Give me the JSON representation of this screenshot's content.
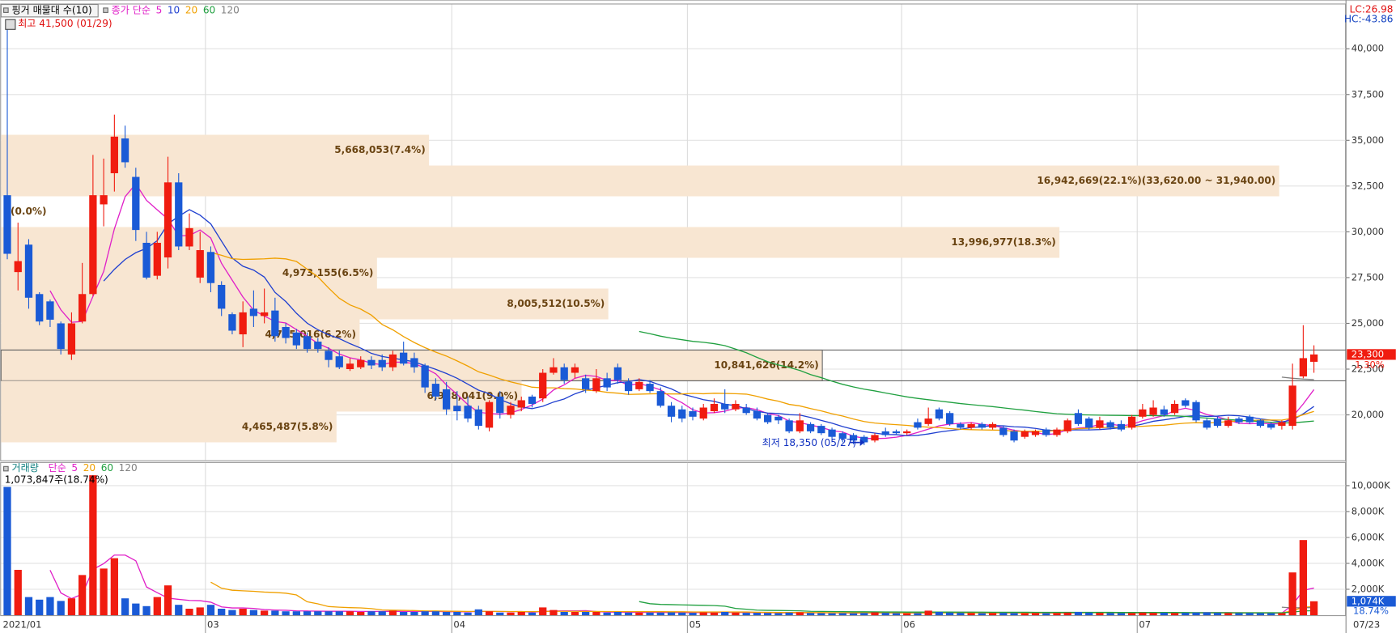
{
  "chart_data": {
    "type": "candlestick",
    "title": "핑거 매물대 수(10)",
    "lc_label": "LC:26.98",
    "hc_label": "HC:-43.86",
    "high_label": "최고 41,500 (01/29)",
    "low_label": "최저 18,350 (05/27)",
    "up_color": "#f01c10",
    "down_color": "#1a5ad6",
    "ylim": [
      17520,
      42420
    ],
    "yticks": [
      {
        "value": 20000,
        "label": "20,000"
      },
      {
        "value": 22500,
        "label": "22,500"
      },
      {
        "value": 25000,
        "label": "25,000"
      },
      {
        "value": 27500,
        "label": "27,500"
      },
      {
        "value": 30000,
        "label": "30,000"
      },
      {
        "value": 32500,
        "label": "32,500"
      },
      {
        "value": 35000,
        "label": "35,000"
      },
      {
        "value": 37500,
        "label": "37,500"
      },
      {
        "value": 40000,
        "label": "40,000"
      }
    ],
    "grid": true,
    "xticks": [
      {
        "value": 0,
        "label": "2021/01"
      },
      {
        "value": 19,
        "label": "03"
      },
      {
        "value": 42,
        "label": "04"
      },
      {
        "value": 64,
        "label": "05"
      },
      {
        "value": 84,
        "label": "06"
      },
      {
        "value": 106,
        "label": "07"
      }
    ],
    "last_date": "07/23",
    "current": {
      "value": 23300,
      "label": "23,300"
    },
    "change": {
      "value": 1.3,
      "label": "1.30%"
    },
    "ma": {
      "label": "종가 단순",
      "lines": [
        {
          "period": 5,
          "color": "#e020c8"
        },
        {
          "period": 10,
          "color": "#2040d0"
        },
        {
          "period": 20,
          "color": "#f0a000"
        },
        {
          "period": 60,
          "color": "#20a040"
        },
        {
          "period": 120,
          "color": "#808080"
        }
      ]
    },
    "bands": [
      {
        "lo": 33620,
        "hi": 35300,
        "pct": 7.4,
        "label": "5,668,053(7.4%)"
      },
      {
        "lo": 31940,
        "hi": 33620,
        "pct": 22.1,
        "label": "16,942,669(22.1%)(33,620.00 ~ 31,940.00)"
      },
      {
        "lo": 30260,
        "hi": 31940,
        "pct": 0.0,
        "label": "0(0.0%)"
      },
      {
        "lo": 28580,
        "hi": 30260,
        "pct": 18.3,
        "label": "13,996,977(18.3%)"
      },
      {
        "lo": 26900,
        "hi": 28580,
        "pct": 6.5,
        "label": "4,973,155(6.5%)"
      },
      {
        "lo": 25220,
        "hi": 26900,
        "pct": 10.5,
        "label": "8,005,512(10.5%)"
      },
      {
        "lo": 23540,
        "hi": 25220,
        "pct": 6.2,
        "label": "4,745,016(6.2%)"
      },
      {
        "lo": 21860,
        "hi": 23540,
        "pct": 14.2,
        "label": "10,841,626(14.2%)",
        "highlight": true
      },
      {
        "lo": 20180,
        "hi": 21860,
        "pct": 9.0,
        "label": "6,928,041(9.0%)"
      },
      {
        "lo": 18500,
        "hi": 20180,
        "pct": 5.8,
        "label": "4,465,487(5.8%)"
      }
    ],
    "band_color": "#f8e6d2",
    "ohlc": [
      [
        32000,
        41500,
        28500,
        28800
      ],
      [
        27800,
        30500,
        26800,
        28400
      ],
      [
        29300,
        29600,
        25800,
        26400
      ],
      [
        26600,
        26700,
        24900,
        25100
      ],
      [
        26200,
        26300,
        24800,
        25200
      ],
      [
        25000,
        25100,
        23300,
        23600
      ],
      [
        23300,
        25600,
        23000,
        25000
      ],
      [
        25100,
        28300,
        25000,
        26600
      ],
      [
        26600,
        34200,
        26500,
        32000
      ],
      [
        31500,
        34000,
        30300,
        32000
      ],
      [
        33200,
        36400,
        32200,
        35200
      ],
      [
        35100,
        35800,
        33500,
        33800
      ],
      [
        33000,
        33500,
        29500,
        30100
      ],
      [
        29400,
        30000,
        27400,
        27500
      ],
      [
        27600,
        30000,
        27400,
        29400
      ],
      [
        28600,
        34100,
        28000,
        32700
      ],
      [
        32700,
        33200,
        29000,
        29200
      ],
      [
        29200,
        31000,
        29000,
        30200
      ],
      [
        27500,
        30000,
        27200,
        29000
      ],
      [
        28900,
        29200,
        26700,
        27200
      ],
      [
        27100,
        27300,
        25400,
        25800
      ],
      [
        25500,
        25600,
        24400,
        24600
      ],
      [
        24400,
        26200,
        23700,
        25600
      ],
      [
        25800,
        26800,
        24800,
        25400
      ],
      [
        25400,
        26900,
        25000,
        25600
      ],
      [
        25700,
        26400,
        24000,
        24300
      ],
      [
        24800,
        25000,
        23900,
        24200
      ],
      [
        24500,
        24700,
        23600,
        23800
      ],
      [
        24300,
        24500,
        23400,
        23600
      ],
      [
        24000,
        24200,
        23400,
        23600
      ],
      [
        23500,
        23700,
        22600,
        23000
      ],
      [
        23200,
        23500,
        22500,
        22600
      ],
      [
        22500,
        23100,
        22400,
        22800
      ],
      [
        22600,
        23200,
        22500,
        23000
      ],
      [
        23000,
        23200,
        22500,
        22700
      ],
      [
        23000,
        23300,
        22400,
        22600
      ],
      [
        22600,
        23500,
        22400,
        23300
      ],
      [
        23400,
        24000,
        22700,
        22800
      ],
      [
        23100,
        23400,
        22300,
        22600
      ],
      [
        22700,
        22800,
        21200,
        21500
      ],
      [
        21700,
        22000,
        20800,
        21000
      ],
      [
        21400,
        21800,
        20000,
        20300
      ],
      [
        20500,
        21300,
        19700,
        20200
      ],
      [
        20500,
        21000,
        19600,
        19800
      ],
      [
        20300,
        20500,
        19200,
        19400
      ],
      [
        19300,
        20800,
        19100,
        20700
      ],
      [
        21000,
        21300,
        19800,
        20100
      ],
      [
        20000,
        20700,
        19800,
        20500
      ],
      [
        20400,
        21000,
        20200,
        20800
      ],
      [
        21000,
        21100,
        20400,
        20600
      ],
      [
        20900,
        22500,
        20700,
        22300
      ],
      [
        22300,
        23100,
        22200,
        22600
      ],
      [
        22600,
        22800,
        21700,
        21900
      ],
      [
        22300,
        22800,
        22000,
        22600
      ],
      [
        22000,
        22200,
        21200,
        21400
      ],
      [
        21300,
        22500,
        21200,
        22000
      ],
      [
        22000,
        22300,
        21300,
        21500
      ],
      [
        22600,
        22800,
        21700,
        21900
      ],
      [
        21800,
        22000,
        21100,
        21300
      ],
      [
        21400,
        22000,
        21300,
        21800
      ],
      [
        21700,
        21900,
        21200,
        21300
      ],
      [
        21300,
        21500,
        20400,
        20500
      ],
      [
        20500,
        20700,
        19600,
        19900
      ],
      [
        20300,
        20500,
        19600,
        19800
      ],
      [
        20200,
        20400,
        19700,
        19900
      ],
      [
        19800,
        20600,
        19700,
        20400
      ],
      [
        20200,
        20900,
        20100,
        20600
      ],
      [
        20600,
        21400,
        20100,
        20300
      ],
      [
        20300,
        20800,
        20200,
        20600
      ],
      [
        20400,
        20600,
        20000,
        20100
      ],
      [
        20200,
        20400,
        19700,
        19800
      ],
      [
        20000,
        20100,
        19500,
        19600
      ],
      [
        19900,
        20000,
        19500,
        19700
      ],
      [
        19700,
        19800,
        19000,
        19100
      ],
      [
        19100,
        20100,
        19000,
        19700
      ],
      [
        19500,
        19600,
        19000,
        19100
      ],
      [
        19400,
        19500,
        18900,
        19000
      ],
      [
        19200,
        19300,
        18700,
        18800
      ],
      [
        19000,
        19100,
        18500,
        18700
      ],
      [
        18900,
        19000,
        18400,
        18600
      ],
      [
        18800,
        18900,
        18350,
        18500
      ],
      [
        18600,
        19000,
        18500,
        18900
      ],
      [
        19100,
        19300,
        18800,
        18900
      ],
      [
        19100,
        19200,
        18900,
        19000
      ],
      [
        19000,
        19200,
        18900,
        19100
      ],
      [
        19600,
        19800,
        19200,
        19300
      ],
      [
        19500,
        20400,
        19400,
        19800
      ],
      [
        20300,
        20400,
        19700,
        19800
      ],
      [
        20100,
        20200,
        19400,
        19500
      ],
      [
        19500,
        19600,
        19200,
        19300
      ],
      [
        19300,
        19600,
        19200,
        19500
      ],
      [
        19500,
        19600,
        19200,
        19300
      ],
      [
        19300,
        19600,
        19200,
        19500
      ],
      [
        19300,
        19400,
        18800,
        18900
      ],
      [
        19100,
        19200,
        18500,
        18600
      ],
      [
        18800,
        19200,
        18700,
        19100
      ],
      [
        18900,
        19200,
        18800,
        19100
      ],
      [
        19200,
        19300,
        18800,
        18900
      ],
      [
        18900,
        19300,
        18800,
        19200
      ],
      [
        19100,
        19800,
        19000,
        19700
      ],
      [
        20100,
        20300,
        19400,
        19500
      ],
      [
        19800,
        19900,
        19200,
        19300
      ],
      [
        19300,
        19900,
        19200,
        19700
      ],
      [
        19600,
        19700,
        19200,
        19300
      ],
      [
        19500,
        19700,
        19100,
        19200
      ],
      [
        19300,
        20000,
        19200,
        19900
      ],
      [
        19900,
        20600,
        19800,
        20300
      ],
      [
        20000,
        20800,
        19900,
        20400
      ],
      [
        20300,
        20500,
        19900,
        20000
      ],
      [
        20100,
        20800,
        20000,
        20600
      ],
      [
        20800,
        20900,
        20400,
        20500
      ],
      [
        20700,
        20800,
        19600,
        19700
      ],
      [
        19700,
        19800,
        19200,
        19300
      ],
      [
        19800,
        19900,
        19300,
        19400
      ],
      [
        19400,
        19900,
        19300,
        19700
      ],
      [
        19800,
        19900,
        19500,
        19600
      ],
      [
        19900,
        20000,
        19500,
        19600
      ],
      [
        19700,
        19800,
        19300,
        19400
      ],
      [
        19500,
        19600,
        19200,
        19300
      ],
      [
        19400,
        19700,
        19200,
        19600
      ],
      [
        19400,
        22800,
        19200,
        21600
      ],
      [
        22100,
        24900,
        22000,
        23100
      ],
      [
        22900,
        23800,
        22300,
        23300
      ]
    ],
    "volume_title": "거래량",
    "volume_ma": {
      "label": "단순",
      "lines": [
        {
          "period": 5,
          "color": "#e020c8"
        },
        {
          "period": 20,
          "color": "#f0a000"
        },
        {
          "period": 60,
          "color": "#20a040"
        },
        {
          "period": 120,
          "color": "#808080"
        }
      ]
    },
    "volume_info": "1,073,847주(18.74%)",
    "volume": [
      9900,
      3500,
      1400,
      1200,
      1400,
      1100,
      1300,
      3100,
      10800,
      3600,
      4400,
      1300,
      900,
      700,
      1400,
      2300,
      800,
      500,
      600,
      800,
      500,
      400,
      500,
      400,
      350,
      350,
      300,
      300,
      300,
      300,
      300,
      300,
      300,
      250,
      300,
      300,
      350,
      250,
      250,
      300,
      300,
      250,
      250,
      200,
      450,
      300,
      200,
      200,
      250,
      200,
      600,
      400,
      250,
      250,
      250,
      250,
      200,
      250,
      200,
      200,
      200,
      200,
      220,
      200,
      180,
      220,
      200,
      250,
      200,
      180,
      180,
      170,
      160,
      200,
      220,
      170,
      160,
      150,
      160,
      150,
      170,
      220,
      180,
      160,
      150,
      160,
      350,
      250,
      200,
      180,
      170,
      160,
      170,
      180,
      170,
      160,
      170,
      160,
      170,
      200,
      250,
      200,
      180,
      170,
      160,
      170,
      200,
      180,
      190,
      170,
      180,
      200,
      220,
      180,
      170,
      160,
      170,
      160,
      150,
      160,
      3300,
      5800,
      1074
    ],
    "vol_ylim": [
      0,
      11750
    ],
    "vol_yticks": [
      {
        "value": 2000,
        "label": "2,000K"
      },
      {
        "value": 4000,
        "label": "4,000K"
      },
      {
        "value": 6000,
        "label": "6,000K"
      },
      {
        "value": 8000,
        "label": "8,000K"
      },
      {
        "value": 10000,
        "label": "10,000K"
      }
    ],
    "vol_current": {
      "value": 1074,
      "label": "1,074K"
    },
    "vol_change": {
      "value": 18.74,
      "label": "18.74%"
    }
  }
}
